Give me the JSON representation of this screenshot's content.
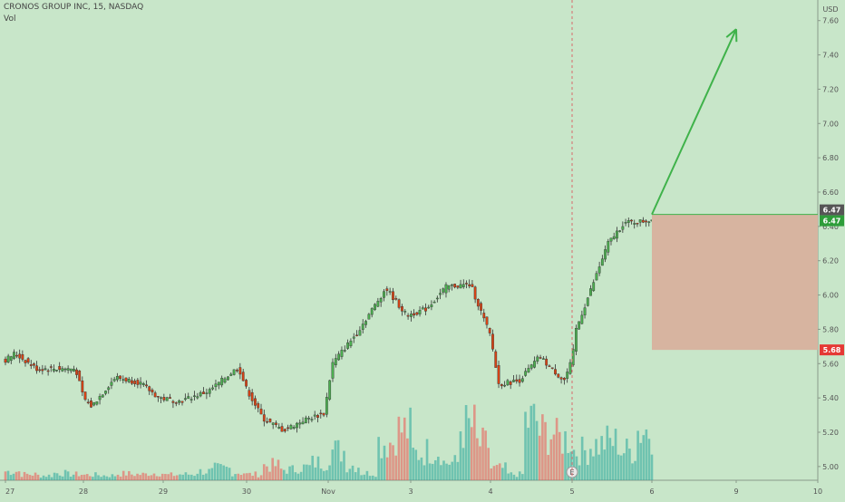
{
  "header": {
    "symbol_line": "CRONOS GROUP INC, 15, NASDAQ",
    "volume_label": "Vol"
  },
  "colors": {
    "background": "#c8e6c9",
    "up": "#26a69a",
    "down": "#ef5350",
    "candle_up": "#4caf50",
    "candle_down": "#d84315",
    "arrow": "#3fb24a",
    "stop_zone": "#d7b4a0",
    "price_tag_last": "#555555",
    "price_tag_target": "#2e9d3a",
    "price_tag_stop": "#e53935"
  },
  "chart_data": {
    "type": "candlestick",
    "x_axis": {
      "tick_labels": [
        "27",
        "28",
        "29",
        "30",
        "Nov",
        "3",
        "4",
        "5",
        "6",
        "9",
        "10"
      ]
    },
    "y_axis": {
      "unit_label": "USD",
      "range": [
        4.92,
        7.72
      ],
      "tick_labels": [
        "5.00",
        "5.20",
        "5.40",
        "5.60",
        "5.80",
        "6.00",
        "6.20",
        "6.40",
        "6.60",
        "6.80",
        "7.00",
        "7.20",
        "7.40",
        "7.60"
      ]
    },
    "price_path": [
      {
        "x": 0,
        "y": 5.62
      },
      {
        "x": 0.12,
        "y": 5.66
      },
      {
        "x": 0.4,
        "y": 5.57
      },
      {
        "x": 0.9,
        "y": 5.57
      },
      {
        "x": 1.0,
        "y": 5.4
      },
      {
        "x": 1.1,
        "y": 5.35
      },
      {
        "x": 1.4,
        "y": 5.52
      },
      {
        "x": 1.7,
        "y": 5.49
      },
      {
        "x": 1.95,
        "y": 5.4
      },
      {
        "x": 2.2,
        "y": 5.38
      },
      {
        "x": 2.55,
        "y": 5.44
      },
      {
        "x": 2.9,
        "y": 5.58
      },
      {
        "x": 3.0,
        "y": 5.45
      },
      {
        "x": 3.2,
        "y": 5.28
      },
      {
        "x": 3.45,
        "y": 5.21
      },
      {
        "x": 3.7,
        "y": 5.27
      },
      {
        "x": 3.95,
        "y": 5.31
      },
      {
        "x": 4.05,
        "y": 5.6
      },
      {
        "x": 4.35,
        "y": 5.78
      },
      {
        "x": 4.7,
        "y": 6.04
      },
      {
        "x": 4.95,
        "y": 5.88
      },
      {
        "x": 5.2,
        "y": 5.92
      },
      {
        "x": 5.45,
        "y": 6.05
      },
      {
        "x": 5.75,
        "y": 6.06
      },
      {
        "x": 6.0,
        "y": 5.76
      },
      {
        "x": 6.1,
        "y": 5.48
      },
      {
        "x": 6.35,
        "y": 5.5
      },
      {
        "x": 6.6,
        "y": 5.64
      },
      {
        "x": 6.9,
        "y": 5.5
      },
      {
        "x": 7.0,
        "y": 5.62
      },
      {
        "x": 7.05,
        "y": 5.8
      },
      {
        "x": 7.25,
        "y": 6.05
      },
      {
        "x": 7.45,
        "y": 6.3
      },
      {
        "x": 7.65,
        "y": 6.42
      },
      {
        "x": 7.9,
        "y": 6.43
      },
      {
        "x": 8.0,
        "y": 6.44
      }
    ],
    "volume_relative": [
      0.15,
      0.1,
      0.08,
      0.12,
      0.1,
      0.09,
      0.08,
      0.11,
      0.1,
      0.12,
      0.09,
      0.1,
      0.15,
      0.2,
      0.13,
      0.1,
      0.25,
      0.18,
      0.22,
      0.3,
      0.5,
      0.25,
      0.12,
      0.65,
      0.85,
      0.45,
      0.5,
      0.3,
      0.9,
      0.6,
      0.2,
      0.1,
      1.0,
      0.8,
      0.7,
      0.5,
      0.6,
      0.65,
      0.5,
      0.85
    ],
    "annotations": [
      {
        "type": "arrow",
        "from": {
          "x": 8.0,
          "y": 6.47
        },
        "to": {
          "x": 9.0,
          "y": 7.55
        }
      },
      {
        "type": "zone",
        "x_from": 8.0,
        "x_to": 10.0,
        "y_from": 5.68,
        "y_to": 6.47
      },
      {
        "type": "earnings_marker",
        "x": 7.0,
        "label": "E"
      },
      {
        "type": "vertical_dashed_line",
        "x": 7.0
      }
    ],
    "price_tags": {
      "last": "6.47",
      "target": "6.47",
      "stop": "5.68"
    }
  }
}
